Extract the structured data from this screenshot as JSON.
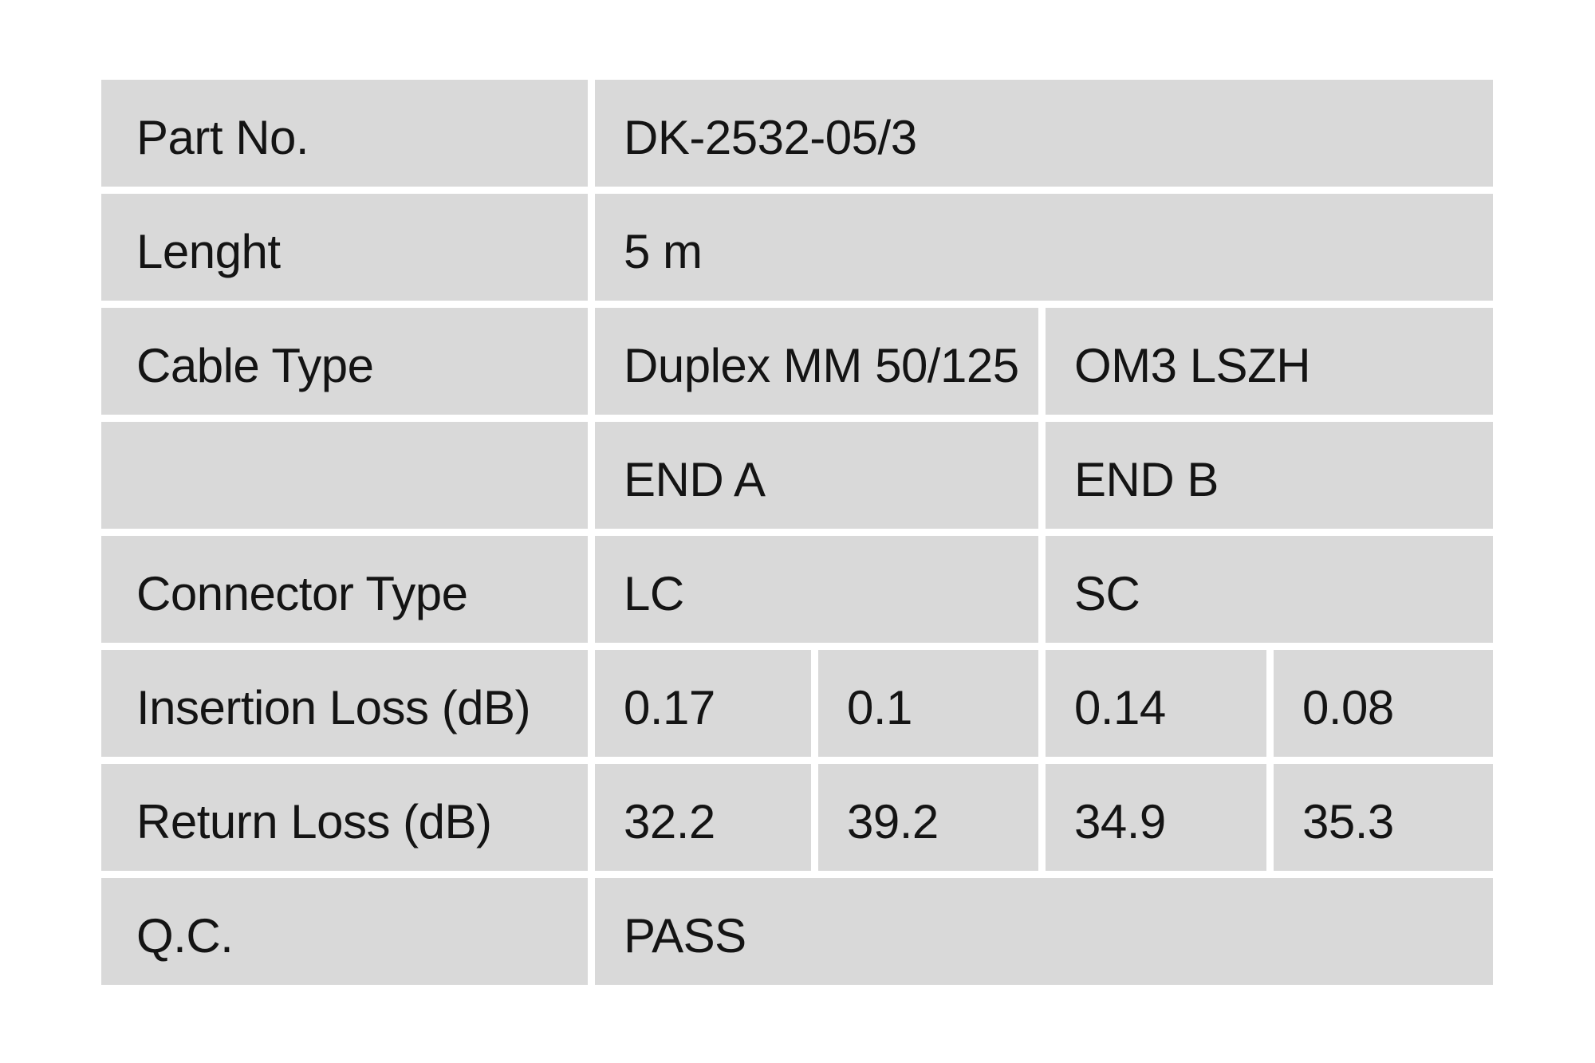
{
  "colors": {
    "background": "#ffffff",
    "cell_background": "#d9d9d9",
    "text": "#141414"
  },
  "table": {
    "rows": [
      {
        "label": "Part No.",
        "cells": [
          {
            "text": "DK-2532-05/3",
            "span": 4
          }
        ]
      },
      {
        "label": "Lenght",
        "cells": [
          {
            "text": "5 m",
            "span": 4
          }
        ]
      },
      {
        "label": "Cable Type",
        "cells": [
          {
            "text": "Duplex MM 50/125",
            "span": 2
          },
          {
            "text": "OM3 LSZH",
            "span": 2
          }
        ]
      },
      {
        "label": "",
        "cells": [
          {
            "text": "END A",
            "span": 2
          },
          {
            "text": "END B",
            "span": 2
          }
        ]
      },
      {
        "label": "Connector Type",
        "cells": [
          {
            "text": "LC",
            "span": 2
          },
          {
            "text": "SC",
            "span": 2
          }
        ]
      },
      {
        "label": "Insertion Loss (dB)",
        "cells": [
          {
            "text": "0.17",
            "span": 1
          },
          {
            "text": "0.1",
            "span": 1
          },
          {
            "text": "0.14",
            "span": 1
          },
          {
            "text": "0.08",
            "span": 1
          }
        ]
      },
      {
        "label": "Return Loss (dB)",
        "cells": [
          {
            "text": "32.2",
            "span": 1
          },
          {
            "text": "39.2",
            "span": 1
          },
          {
            "text": "34.9",
            "span": 1
          },
          {
            "text": "35.3",
            "span": 1
          }
        ]
      },
      {
        "label": "Q.C.",
        "cells": [
          {
            "text": "PASS",
            "span": 4
          }
        ]
      }
    ]
  }
}
